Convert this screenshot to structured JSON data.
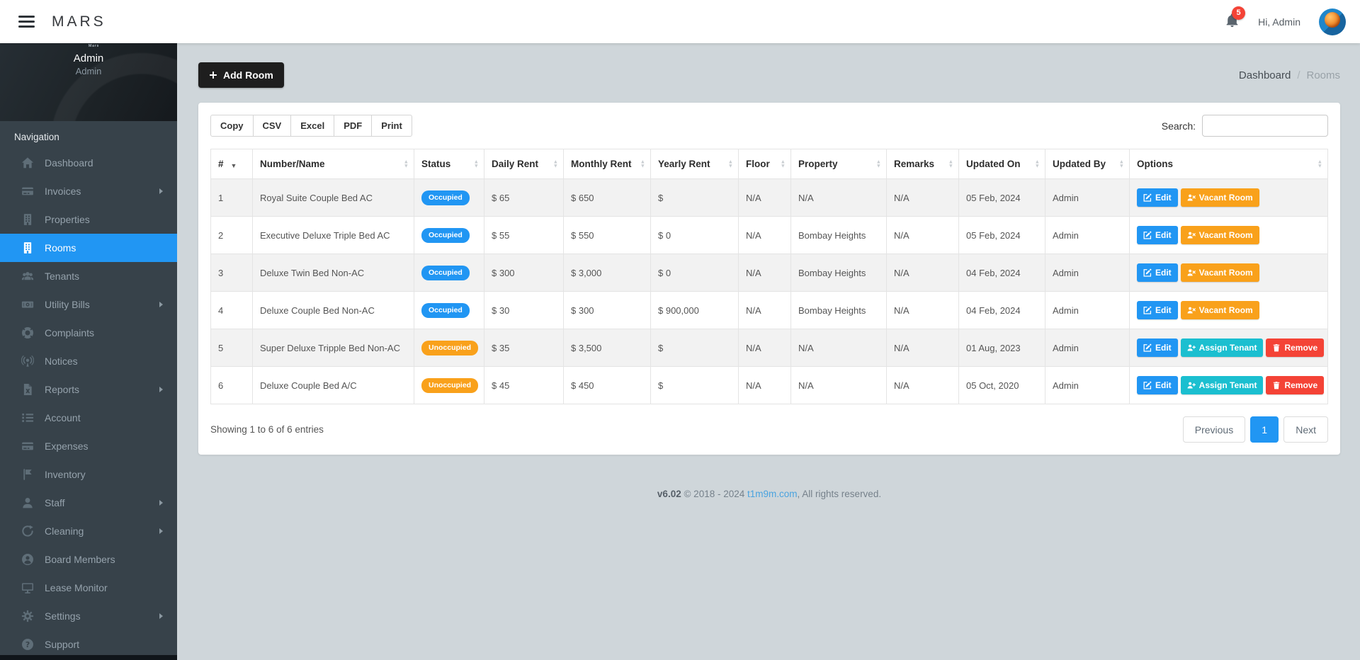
{
  "navbar": {
    "logo": "MARS",
    "notification_count": "5",
    "greeting": "Hi, Admin"
  },
  "sidebar": {
    "profile": {
      "name": "Admin",
      "role": "Admin",
      "avatar_text": "Mars"
    },
    "section_label": "Navigation",
    "items": [
      {
        "label": "Dashboard",
        "icon": "home",
        "has_submenu": false,
        "active": false
      },
      {
        "label": "Invoices",
        "icon": "credit-card",
        "has_submenu": true,
        "active": false
      },
      {
        "label": "Properties",
        "icon": "building",
        "has_submenu": false,
        "active": false
      },
      {
        "label": "Rooms",
        "icon": "building",
        "has_submenu": false,
        "active": true
      },
      {
        "label": "Tenants",
        "icon": "users",
        "has_submenu": false,
        "active": false
      },
      {
        "label": "Utility Bills",
        "icon": "money-bill",
        "has_submenu": true,
        "active": false
      },
      {
        "label": "Complaints",
        "icon": "life-ring",
        "has_submenu": false,
        "active": false
      },
      {
        "label": "Notices",
        "icon": "broadcast",
        "has_submenu": false,
        "active": false
      },
      {
        "label": "Reports",
        "icon": "file-excel",
        "has_submenu": true,
        "active": false
      },
      {
        "label": "Account",
        "icon": "list-ol",
        "has_submenu": false,
        "active": false
      },
      {
        "label": "Expenses",
        "icon": "credit-card",
        "has_submenu": false,
        "active": false
      },
      {
        "label": "Inventory",
        "icon": "flag",
        "has_submenu": false,
        "active": false
      },
      {
        "label": "Staff",
        "icon": "user",
        "has_submenu": true,
        "active": false
      },
      {
        "label": "Cleaning",
        "icon": "recycle",
        "has_submenu": true,
        "active": false
      },
      {
        "label": "Board Members",
        "icon": "user-circle",
        "has_submenu": false,
        "active": false
      },
      {
        "label": "Lease Monitor",
        "icon": "desktop",
        "has_submenu": false,
        "active": false
      },
      {
        "label": "Settings",
        "icon": "gear",
        "has_submenu": true,
        "active": false
      },
      {
        "label": "Support",
        "icon": "question-circle",
        "has_submenu": false,
        "active": false
      }
    ]
  },
  "content": {
    "add_room_label": "Add Room",
    "breadcrumb": [
      "Dashboard",
      "Rooms"
    ],
    "export_buttons": [
      "Copy",
      "CSV",
      "Excel",
      "PDF",
      "Print"
    ],
    "search_label": "Search:",
    "search_value": "",
    "table": {
      "columns": [
        {
          "label": "#",
          "sort": "desc"
        },
        {
          "label": "Number/Name",
          "sort": "both"
        },
        {
          "label": "Status",
          "sort": "both"
        },
        {
          "label": "Daily Rent",
          "sort": "both"
        },
        {
          "label": "Monthly Rent",
          "sort": "both"
        },
        {
          "label": "Yearly Rent",
          "sort": "both"
        },
        {
          "label": "Floor",
          "sort": "both"
        },
        {
          "label": "Property",
          "sort": "both"
        },
        {
          "label": "Remarks",
          "sort": "both"
        },
        {
          "label": "Updated On",
          "sort": "both"
        },
        {
          "label": "Updated By",
          "sort": "both"
        },
        {
          "label": "Options",
          "sort": "both"
        }
      ],
      "action_labels": {
        "edit": "Edit",
        "vacant": "Vacant Room",
        "assign": "Assign Tenant",
        "remove": "Remove"
      },
      "rows": [
        {
          "num": "1",
          "name": "Royal Suite Couple Bed AC",
          "status": "Occupied",
          "status_color": "occupied",
          "daily": "$ 65",
          "monthly": "$ 650",
          "yearly": "$",
          "floor": "N/A",
          "property": "N/A",
          "remarks": "N/A",
          "updated_on": "05 Feb, 2024",
          "updated_by": "Admin",
          "actions": [
            "edit",
            "vacant"
          ]
        },
        {
          "num": "2",
          "name": "Executive Deluxe Triple Bed AC",
          "status": "Occupied",
          "status_color": "occupied",
          "daily": "$ 55",
          "monthly": "$ 550",
          "yearly": "$ 0",
          "floor": "N/A",
          "property": "Bombay Heights",
          "remarks": "N/A",
          "updated_on": "05 Feb, 2024",
          "updated_by": "Admin",
          "actions": [
            "edit",
            "vacant"
          ]
        },
        {
          "num": "3",
          "name": "Deluxe Twin Bed Non-AC",
          "status": "Occupied",
          "status_color": "occupied",
          "daily": "$ 300",
          "monthly": "$ 3,000",
          "yearly": "$ 0",
          "floor": "N/A",
          "property": "Bombay Heights",
          "remarks": "N/A",
          "updated_on": "04 Feb, 2024",
          "updated_by": "Admin",
          "actions": [
            "edit",
            "vacant"
          ]
        },
        {
          "num": "4",
          "name": "Deluxe Couple Bed Non-AC",
          "status": "Occupied",
          "status_color": "occupied",
          "daily": "$ 30",
          "monthly": "$ 300",
          "yearly": "$ 900,000",
          "floor": "N/A",
          "property": "Bombay Heights",
          "remarks": "N/A",
          "updated_on": "04 Feb, 2024",
          "updated_by": "Admin",
          "actions": [
            "edit",
            "vacant"
          ]
        },
        {
          "num": "5",
          "name": "Super Deluxe Tripple Bed Non-AC",
          "status": "Unoccupied",
          "status_color": "unoccupied",
          "daily": "$ 35",
          "monthly": "$ 3,500",
          "yearly": "$",
          "floor": "N/A",
          "property": "N/A",
          "remarks": "N/A",
          "updated_on": "01 Aug, 2023",
          "updated_by": "Admin",
          "actions": [
            "edit",
            "assign",
            "remove"
          ]
        },
        {
          "num": "6",
          "name": "Deluxe Couple Bed A/C",
          "status": "Unoccupied",
          "status_color": "unoccupied",
          "daily": "$ 45",
          "monthly": "$ 450",
          "yearly": "$",
          "floor": "N/A",
          "property": "N/A",
          "remarks": "N/A",
          "updated_on": "05 Oct, 2020",
          "updated_by": "Admin",
          "actions": [
            "edit",
            "assign",
            "remove"
          ]
        }
      ]
    },
    "summary": "Showing 1 to 6 of 6 entries",
    "pagination": {
      "previous": "Previous",
      "page": "1",
      "next": "Next"
    }
  },
  "footer": {
    "version": "v6.02",
    "copyright": "© 2018 - 2024",
    "link": "t1m9m.com",
    "suffix": ", All rights reserved."
  },
  "colors": {
    "accent_blue": "#2196f3",
    "occupied": "#2196f3",
    "unoccupied": "#f9a11b",
    "edit": "#2196f3",
    "vacant": "#f9a11b",
    "assign": "#1bbfd0",
    "remove": "#f44336",
    "badge_red": "#f44336"
  }
}
